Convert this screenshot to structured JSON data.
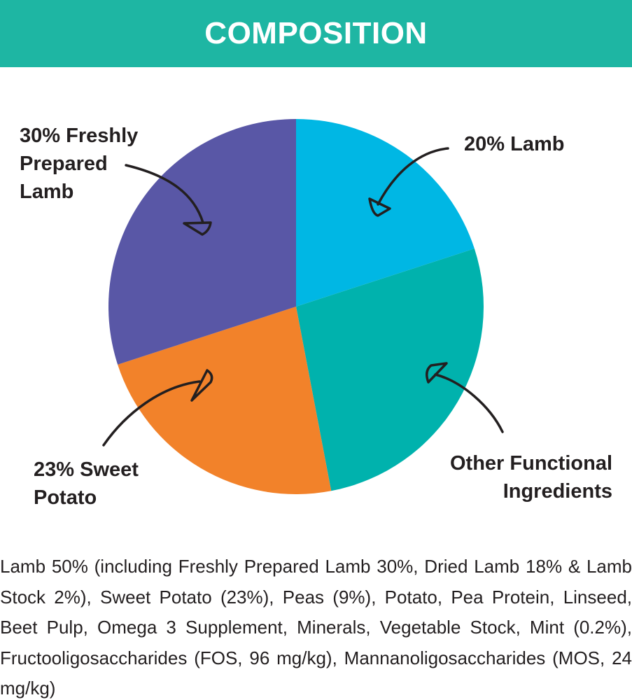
{
  "header": {
    "title": "COMPOSITION",
    "background_color": "#1eb6a3"
  },
  "chart_data": {
    "type": "pie",
    "title": "",
    "start_angle_deg": 0,
    "direction": "clockwise",
    "slices": [
      {
        "label_lines": [
          "20% Lamb"
        ],
        "value": 20,
        "color": "#00b7e4"
      },
      {
        "label_lines": [
          "Other Functional",
          "Ingredients"
        ],
        "value": 27,
        "color": "#00b2ad"
      },
      {
        "label_lines": [
          "23% Sweet",
          "Potato"
        ],
        "value": 23,
        "color": "#f2822a"
      },
      {
        "label_lines": [
          "30% Freshly",
          "Prepared",
          "Lamb"
        ],
        "value": 30,
        "color": "#5957a6"
      }
    ],
    "legend": "callouts-with-arrows"
  },
  "composition_text": "Lamb 50% (including Freshly Prepared Lamb 30%, Dried Lamb 18% & Lamb Stock 2%), Sweet Potato (23%), Peas (9%), Potato, Pea Protein, Linseed, Beet Pulp, Omega 3 Supplement, Minerals, Vegetable Stock, Mint (0.2%), Fructooligosaccharides (FOS, 96 mg/kg), Mannanoligosaccharides (MOS, 24 mg/kg)"
}
